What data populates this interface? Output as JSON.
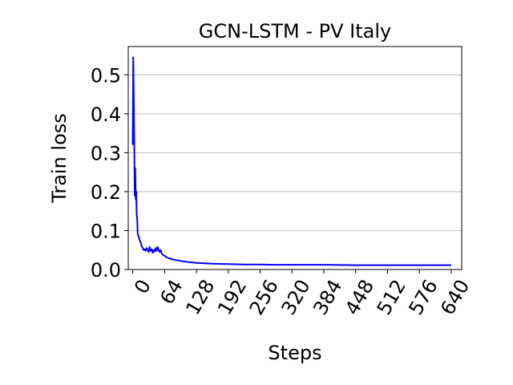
{
  "chart_data": {
    "type": "line",
    "title": "GCN-LSTM - PV Italy",
    "xlabel": "Steps",
    "ylabel": "Train loss",
    "xlim": [
      -9,
      661
    ],
    "ylim": [
      0.0,
      0.5728
    ],
    "xticks": [
      "0",
      "64",
      "128",
      "192",
      "256",
      "320",
      "384",
      "448",
      "512",
      "576",
      "640"
    ],
    "yticks": [
      "0.0",
      "0.1",
      "0.2",
      "0.3",
      "0.4",
      "0.5"
    ],
    "x_tick_rotation": 60,
    "grid": "y-axis major lines",
    "series": [
      {
        "color": "#0000ff",
        "points": [
          [
            0,
            0.32
          ],
          [
            1,
            0.545
          ],
          [
            2,
            0.45
          ],
          [
            3,
            0.33
          ],
          [
            4,
            0.19
          ],
          [
            5,
            0.26
          ],
          [
            6,
            0.18
          ],
          [
            7,
            0.2
          ],
          [
            8,
            0.14
          ],
          [
            9,
            0.13
          ],
          [
            10,
            0.09
          ],
          [
            12,
            0.085
          ],
          [
            14,
            0.075
          ],
          [
            16,
            0.07
          ],
          [
            18,
            0.06
          ],
          [
            20,
            0.055
          ],
          [
            22,
            0.05
          ],
          [
            24,
            0.052
          ],
          [
            26,
            0.048
          ],
          [
            28,
            0.055
          ],
          [
            30,
            0.05
          ],
          [
            32,
            0.045
          ],
          [
            34,
            0.058
          ],
          [
            36,
            0.048
          ],
          [
            38,
            0.052
          ],
          [
            40,
            0.043
          ],
          [
            42,
            0.05
          ],
          [
            44,
            0.046
          ],
          [
            46,
            0.055
          ],
          [
            48,
            0.048
          ],
          [
            50,
            0.058
          ],
          [
            52,
            0.05
          ],
          [
            54,
            0.045
          ],
          [
            56,
            0.05
          ],
          [
            58,
            0.042
          ],
          [
            60,
            0.038
          ],
          [
            64,
            0.035
          ],
          [
            70,
            0.03
          ],
          [
            80,
            0.026
          ],
          [
            96,
            0.022
          ],
          [
            112,
            0.019
          ],
          [
            128,
            0.017
          ],
          [
            160,
            0.015
          ],
          [
            192,
            0.014
          ],
          [
            224,
            0.013
          ],
          [
            256,
            0.013
          ],
          [
            288,
            0.012
          ],
          [
            320,
            0.012
          ],
          [
            384,
            0.012
          ],
          [
            448,
            0.011
          ],
          [
            512,
            0.011
          ],
          [
            576,
            0.011
          ],
          [
            640,
            0.011
          ]
        ]
      }
    ]
  }
}
